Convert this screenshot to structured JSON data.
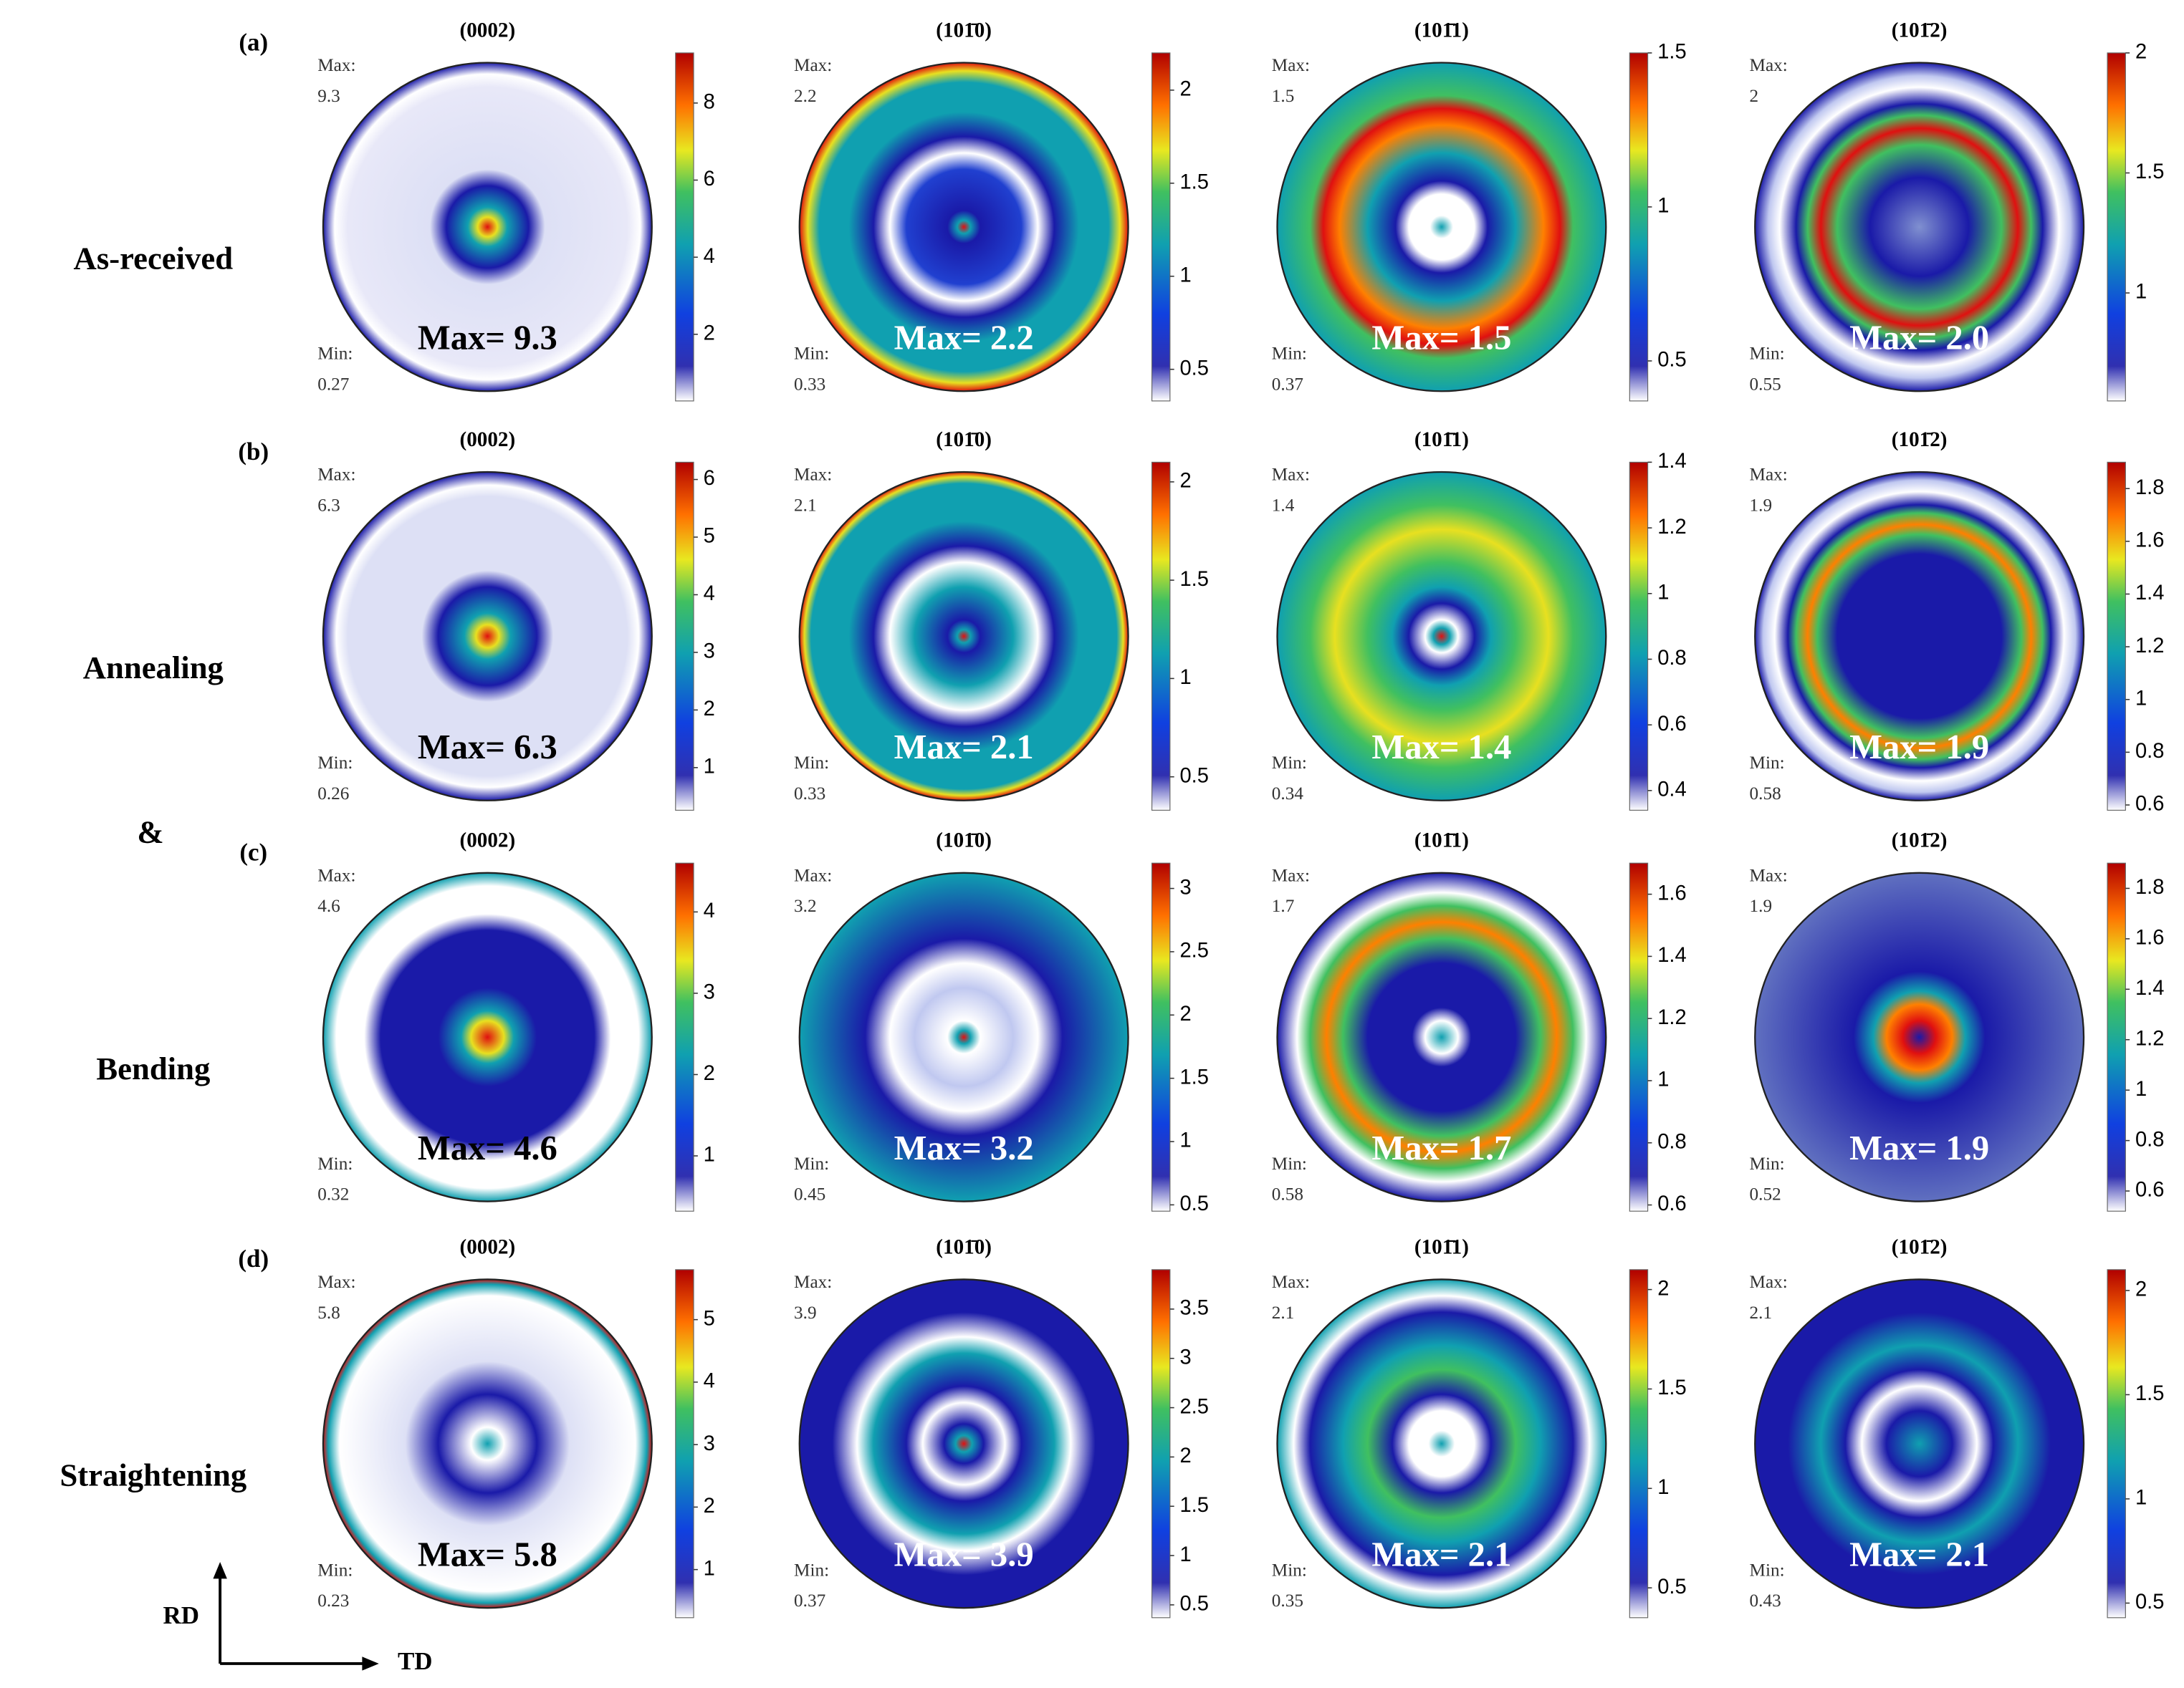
{
  "rows": [
    {
      "label": "(a)",
      "name": "As-received",
      "panels": [
        {
          "title": "(0002)",
          "max_label": "Max:",
          "max": 9.3,
          "min_label": "Min:",
          "min": 0.27,
          "max_text": "Max= 9.3",
          "ticks": [
            2,
            4,
            6,
            8
          ]
        },
        {
          "title": "(101̄0)",
          "max_label": "Max:",
          "max": 2.2,
          "min_label": "Min:",
          "min": 0.33,
          "max_text": "Max= 2.2",
          "ticks": [
            0.5,
            1,
            1.5,
            2
          ]
        },
        {
          "title": "(101̄1)",
          "max_label": "Max:",
          "max": 1.5,
          "min_label": "Min:",
          "min": 0.37,
          "max_text": "Max= 1.5",
          "ticks": [
            0.5,
            1,
            1.5
          ]
        },
        {
          "title": "(101̄2)",
          "max_label": "Max:",
          "max": 2,
          "min_label": "Min:",
          "min": 0.55,
          "max_text": "Max= 2.0",
          "ticks": [
            1,
            1.5,
            2
          ]
        }
      ]
    },
    {
      "label": "(b)",
      "name": "Annealing",
      "panels": [
        {
          "title": "(0002)",
          "max_label": "Max:",
          "max": 6.3,
          "min_label": "Min:",
          "min": 0.26,
          "max_text": "Max= 6.3",
          "ticks": [
            1,
            2,
            3,
            4,
            5,
            6
          ]
        },
        {
          "title": "(101̄0)",
          "max_label": "Max:",
          "max": 2.1,
          "min_label": "Min:",
          "min": 0.33,
          "max_text": "Max= 2.1",
          "ticks": [
            0.5,
            1,
            1.5,
            2
          ]
        },
        {
          "title": "(101̄1)",
          "max_label": "Max:",
          "max": 1.4,
          "min_label": "Min:",
          "min": 0.34,
          "max_text": "Max= 1.4",
          "ticks": [
            0.4,
            0.6,
            0.8,
            1,
            1.2,
            1.4
          ]
        },
        {
          "title": "(101̄2)",
          "max_label": "Max:",
          "max": 1.9,
          "min_label": "Min:",
          "min": 0.58,
          "max_text": "Max= 1.9",
          "ticks": [
            0.6,
            0.8,
            1,
            1.2,
            1.4,
            1.6,
            1.8
          ]
        }
      ]
    },
    {
      "label": "(c)",
      "name": "Bending",
      "panels": [
        {
          "title": "(0002)",
          "max_label": "Max:",
          "max": 4.6,
          "min_label": "Min:",
          "min": 0.32,
          "max_text": "Max= 4.6",
          "ticks": [
            1,
            2,
            3,
            4
          ]
        },
        {
          "title": "(101̄0)",
          "max_label": "Max:",
          "max": 3.2,
          "min_label": "Min:",
          "min": 0.45,
          "max_text": "Max= 3.2",
          "ticks": [
            0.5,
            1,
            1.5,
            2,
            2.5,
            3
          ]
        },
        {
          "title": "(101̄1)",
          "max_label": "Max:",
          "max": 1.7,
          "min_label": "Min:",
          "min": 0.58,
          "max_text": "Max= 1.7",
          "ticks": [
            0.6,
            0.8,
            1,
            1.2,
            1.4,
            1.6
          ]
        },
        {
          "title": "(101̄2)",
          "max_label": "Max:",
          "max": 1.9,
          "min_label": "Min:",
          "min": 0.52,
          "max_text": "Max= 1.9",
          "ticks": [
            0.6,
            0.8,
            1,
            1.2,
            1.4,
            1.6,
            1.8
          ]
        }
      ]
    },
    {
      "label": "(d)",
      "name": "Straightening",
      "panels": [
        {
          "title": "(0002)",
          "max_label": "Max:",
          "max": 5.8,
          "min_label": "Min:",
          "min": 0.23,
          "max_text": "Max= 5.8",
          "ticks": [
            1,
            2,
            3,
            4,
            5
          ]
        },
        {
          "title": "(101̄0)",
          "max_label": "Max:",
          "max": 3.9,
          "min_label": "Min:",
          "min": 0.37,
          "max_text": "Max= 3.9",
          "ticks": [
            0.5,
            1,
            1.5,
            2,
            2.5,
            3,
            3.5
          ]
        },
        {
          "title": "(101̄1)",
          "max_label": "Max:",
          "max": 2.1,
          "min_label": "Min:",
          "min": 0.35,
          "max_text": "Max= 2.1",
          "ticks": [
            0.5,
            1,
            1.5,
            2
          ]
        },
        {
          "title": "(101̄2)",
          "max_label": "Max:",
          "max": 2.1,
          "min_label": "Min:",
          "min": 0.43,
          "max_text": "Max= 2.1",
          "ticks": [
            0.5,
            1,
            1.5,
            2
          ]
        }
      ]
    }
  ],
  "ampersand": "&",
  "axes": {
    "rd": "RD",
    "td": "TD"
  }
}
